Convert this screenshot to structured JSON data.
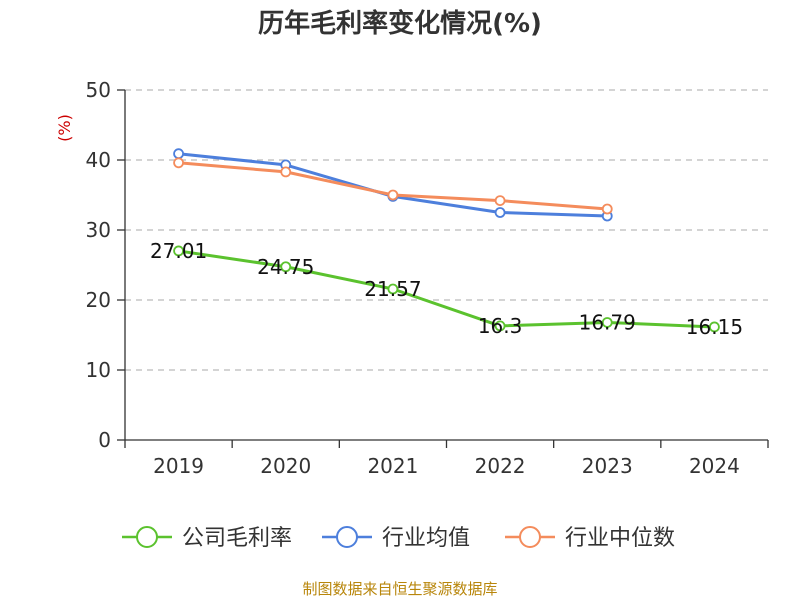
{
  "chart_data": {
    "type": "line",
    "title": "历年毛利率变化情况(%)",
    "ylabel": "(%)",
    "categories": [
      "2019",
      "2020",
      "2021",
      "2022",
      "2023",
      "2024"
    ],
    "ylim": [
      0,
      50
    ],
    "yticks": [
      0,
      10,
      20,
      30,
      40,
      50
    ],
    "grid": true,
    "legend_position": "bottom",
    "series": [
      {
        "name": "公司毛利率",
        "color": "#5bc22e",
        "values": [
          27.01,
          24.75,
          21.57,
          16.3,
          16.79,
          16.15
        ],
        "labels": [
          "27.01",
          "24.75",
          "21.57",
          "16.3",
          "16.79",
          "16.15"
        ]
      },
      {
        "name": "行业均值",
        "color": "#4d7fdc",
        "values": [
          40.9,
          39.3,
          34.8,
          32.5,
          32.0,
          null
        ]
      },
      {
        "name": "行业中位数",
        "color": "#f48c5c",
        "values": [
          39.6,
          38.3,
          35.0,
          34.2,
          33.0,
          null
        ]
      }
    ],
    "source": "制图数据来自恒生聚源数据库",
    "ylabel_color": "#cc0000",
    "source_color": "#b8860b"
  }
}
